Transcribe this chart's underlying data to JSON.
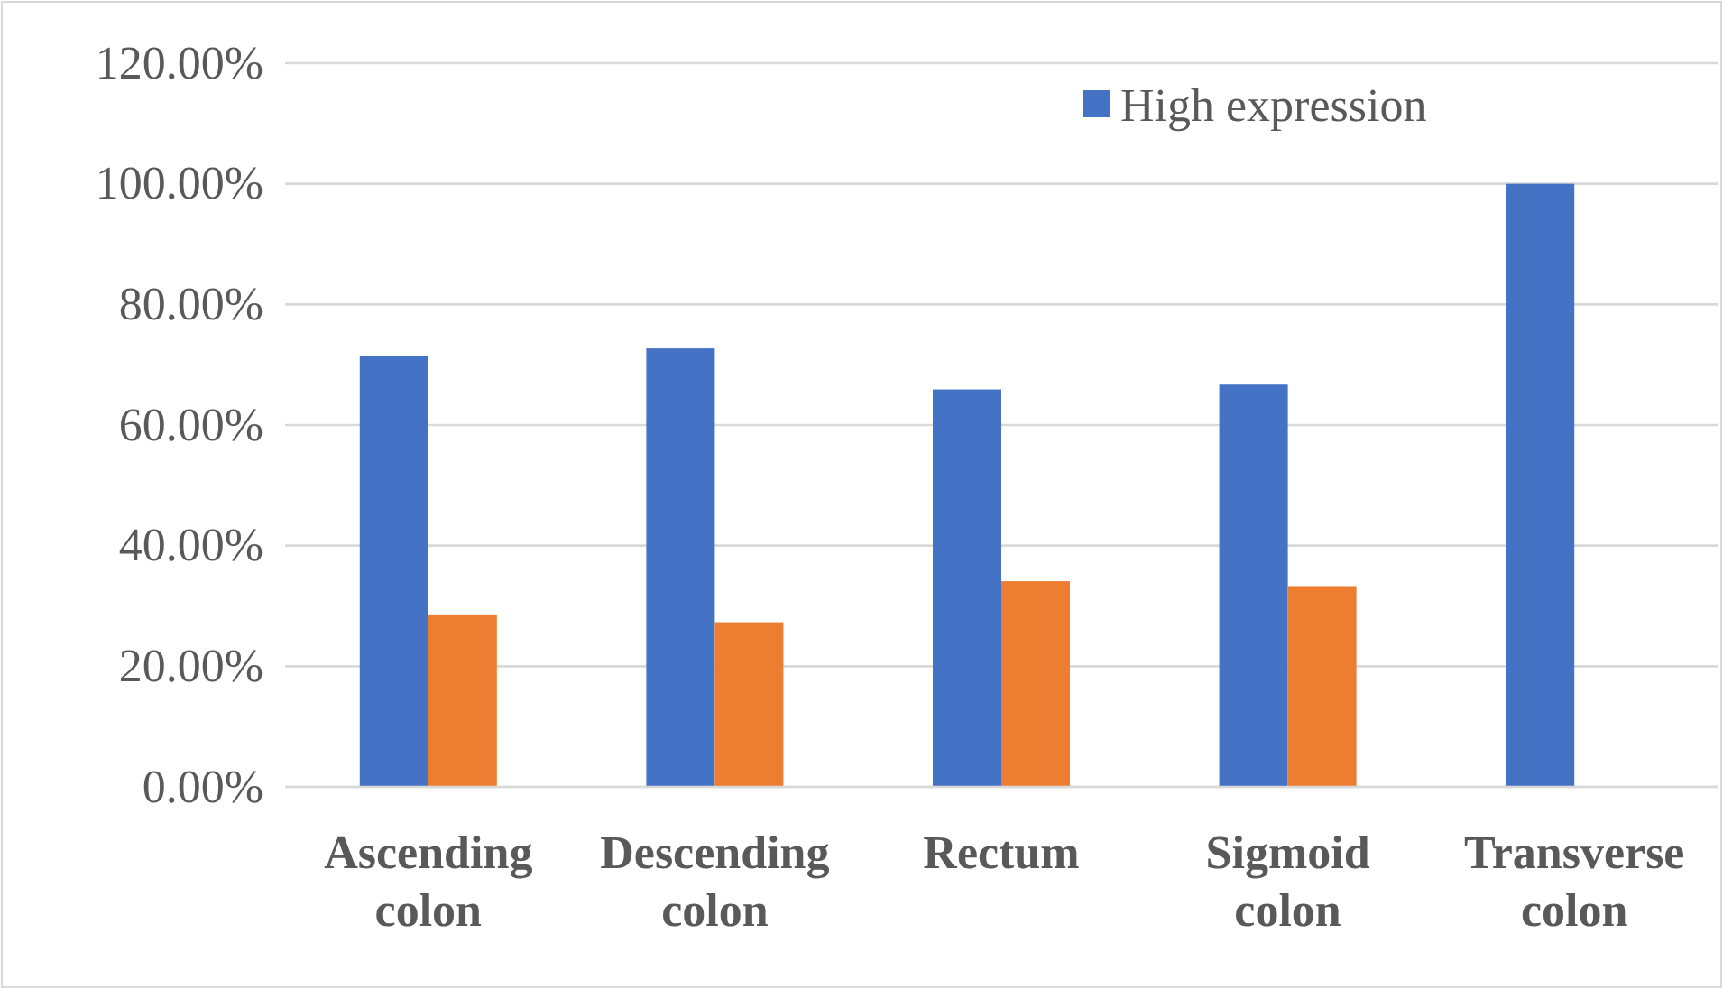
{
  "chart_data": {
    "type": "bar",
    "categories": [
      "Ascending colon",
      "Descending colon",
      "Rectum",
      "Sigmoid colon",
      "Transverse colon"
    ],
    "series": [
      {
        "name": "High expression",
        "color": "#4472c4",
        "values": [
          71.4,
          72.7,
          65.9,
          66.7,
          100
        ]
      },
      {
        "color": "#ed7d31",
        "values": [
          28.6,
          27.3,
          34.1,
          33.3,
          0
        ]
      }
    ],
    "ylim": [
      0,
      120
    ],
    "yticks": [
      {
        "value": 0,
        "label": "0.00%"
      },
      {
        "value": 20,
        "label": "20.00%"
      },
      {
        "value": 40,
        "label": "40.00%"
      },
      {
        "value": 60,
        "label": "60.00%"
      },
      {
        "value": 80,
        "label": "80.00%"
      },
      {
        "value": 100,
        "label": "100.00%"
      },
      {
        "value": 120,
        "label": "120.00%"
      }
    ],
    "grid": "y",
    "legend": "top right"
  }
}
